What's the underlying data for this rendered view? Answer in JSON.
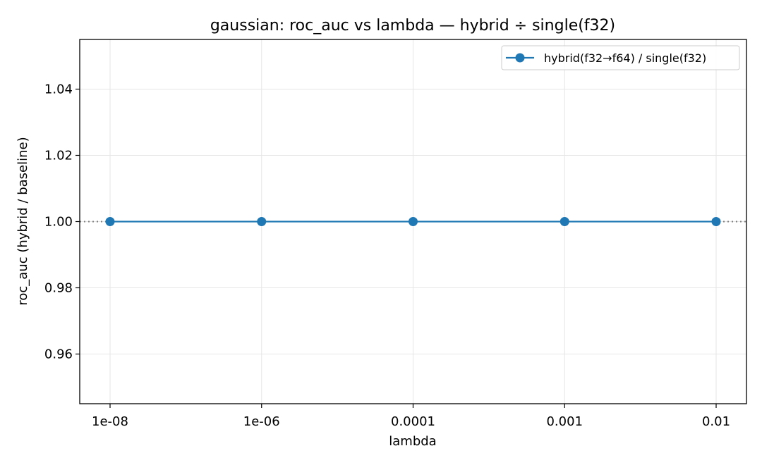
{
  "chart_data": {
    "type": "line",
    "title": "gaussian: roc_auc vs lambda — hybrid ÷ single(f32)",
    "xlabel": "lambda",
    "ylabel": "roc_auc (hybrid / baseline)",
    "x_scale": "categorical",
    "categories": [
      "1e-08",
      "1e-06",
      "0.0001",
      "0.001",
      "0.01"
    ],
    "ylim": [
      0.945,
      1.055
    ],
    "yticks": [
      0.96,
      0.98,
      1.0,
      1.02,
      1.04
    ],
    "ytick_labels": [
      "0.96",
      "0.98",
      "1.00",
      "1.02",
      "1.04"
    ],
    "grid": true,
    "legend_position": "top-right",
    "reference_line": {
      "y": 1.0,
      "style": "dotted",
      "color": "#808080"
    },
    "series": [
      {
        "name": "hybrid(f32→f64) / single(f32)",
        "values": [
          1.0,
          1.0,
          1.0,
          1.0,
          1.0
        ],
        "color": "#1f77b4",
        "marker": "circle"
      }
    ]
  }
}
